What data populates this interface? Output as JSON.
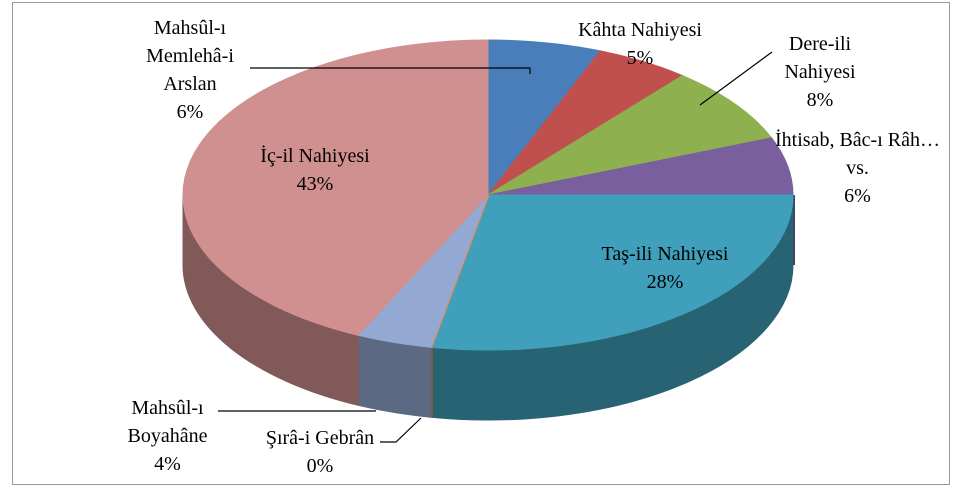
{
  "chart_data": {
    "type": "pie3d",
    "categories": [
      "Mahsûl-ı Memlehâ-i Arslan",
      "Kâhta Nahiyesi",
      "Dere-ili Nahiyesi",
      "İhtisab, Bâc-ı Râh…vs.",
      "Taş-ili Nahiyesi",
      "Şırâ-i Gebrân",
      "Mahsûl-ı Boyahâne",
      "İç-il Nahiyesi"
    ],
    "values": [
      6,
      5,
      8,
      6,
      28,
      0,
      4,
      43
    ],
    "value_labels": [
      "6%",
      "5%",
      "8%",
      "6%",
      "28%",
      "0%",
      "4%",
      "43%"
    ],
    "colors": [
      "#4a7ebb",
      "#c0504d",
      "#8eb04f",
      "#7a5f9e",
      "#409fba",
      "#f0883a",
      "#93a9d4",
      "#d09090"
    ]
  }
}
